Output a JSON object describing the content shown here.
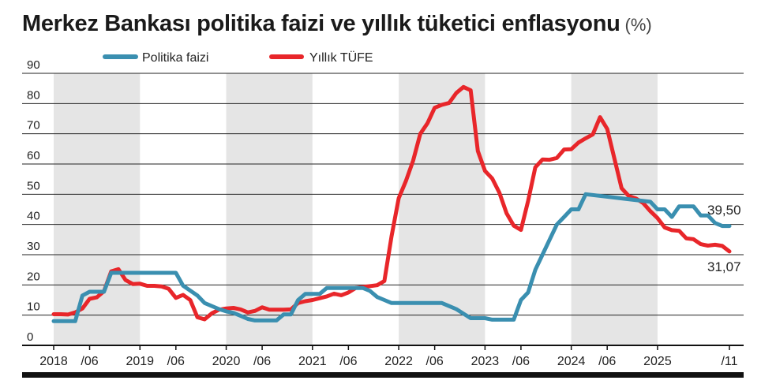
{
  "chart_data": {
    "type": "line",
    "title": "Merkez Bankası politika faizi ve yıllık tüketici enflasyonu",
    "unit": "(%)",
    "ylim": [
      0,
      90
    ],
    "yticks": [
      0,
      10,
      20,
      30,
      40,
      50,
      60,
      70,
      80,
      90
    ],
    "x_range": [
      "2018-01",
      "2025-11"
    ],
    "x_ticks": [
      {
        "label": "2018",
        "date": "2018-01"
      },
      {
        "label": "/06",
        "date": "2018-06"
      },
      {
        "label": "2019",
        "date": "2019-01"
      },
      {
        "label": "/06",
        "date": "2019-06"
      },
      {
        "label": "2020",
        "date": "2020-01"
      },
      {
        "label": "/06",
        "date": "2020-06"
      },
      {
        "label": "2021",
        "date": "2021-01"
      },
      {
        "label": "/06",
        "date": "2021-06"
      },
      {
        "label": "2022",
        "date": "2022-01"
      },
      {
        "label": "/06",
        "date": "2022-06"
      },
      {
        "label": "2023",
        "date": "2023-01"
      },
      {
        "label": "/06",
        "date": "2023-06"
      },
      {
        "label": "2024",
        "date": "2024-01"
      },
      {
        "label": "/06",
        "date": "2024-06"
      },
      {
        "label": "2025",
        "date": "2025-01"
      },
      {
        "label": "/11",
        "date": "2025-11"
      }
    ],
    "shaded_years": [
      2018,
      2020,
      2022,
      2024
    ],
    "grid": "horizontal",
    "legend_placement": "top",
    "series": [
      {
        "name": "Politika faizi",
        "color": "#3a8fb0",
        "end_label": "39,50",
        "points": [
          [
            "2018-01",
            8
          ],
          [
            "2018-04",
            8
          ],
          [
            "2018-05",
            16.5
          ],
          [
            "2018-06",
            17.75
          ],
          [
            "2018-07",
            17.75
          ],
          [
            "2018-08",
            17.75
          ],
          [
            "2018-09",
            24
          ],
          [
            "2019-06",
            24
          ],
          [
            "2019-07",
            19.75
          ],
          [
            "2019-09",
            16.5
          ],
          [
            "2019-10",
            14
          ],
          [
            "2019-12",
            12
          ],
          [
            "2020-01",
            11.25
          ],
          [
            "2020-02",
            10.75
          ],
          [
            "2020-03",
            9.75
          ],
          [
            "2020-04",
            8.75
          ],
          [
            "2020-05",
            8.25
          ],
          [
            "2020-08",
            8.25
          ],
          [
            "2020-09",
            10.25
          ],
          [
            "2020-10",
            10.25
          ],
          [
            "2020-11",
            15
          ],
          [
            "2020-12",
            17
          ],
          [
            "2021-02",
            17
          ],
          [
            "2021-03",
            19
          ],
          [
            "2021-08",
            19
          ],
          [
            "2021-09",
            18
          ],
          [
            "2021-10",
            16
          ],
          [
            "2021-11",
            15
          ],
          [
            "2021-12",
            14
          ],
          [
            "2022-07",
            14
          ],
          [
            "2022-08",
            13
          ],
          [
            "2022-09",
            12
          ],
          [
            "2022-10",
            10.5
          ],
          [
            "2022-11",
            9
          ],
          [
            "2023-01",
            9
          ],
          [
            "2023-02",
            8.5
          ],
          [
            "2023-05",
            8.5
          ],
          [
            "2023-06",
            15
          ],
          [
            "2023-07",
            17.5
          ],
          [
            "2023-08",
            25
          ],
          [
            "2023-09",
            30
          ],
          [
            "2023-10",
            35
          ],
          [
            "2023-11",
            40
          ],
          [
            "2023-12",
            42.5
          ],
          [
            "2024-01",
            45
          ],
          [
            "2024-02",
            45
          ],
          [
            "2024-03",
            50
          ],
          [
            "2024-12",
            47.5
          ],
          [
            "2025-01",
            45
          ],
          [
            "2025-02",
            45
          ],
          [
            "2025-03",
            42.5
          ],
          [
            "2025-04",
            46
          ],
          [
            "2025-06",
            46
          ],
          [
            "2025-07",
            43
          ],
          [
            "2025-08",
            43
          ],
          [
            "2025-09",
            40.5
          ],
          [
            "2025-10",
            39.5
          ],
          [
            "2025-11",
            39.5
          ]
        ]
      },
      {
        "name": "Yıllık TÜFE",
        "color": "#e8262a",
        "end_label": "31,07",
        "points": [
          [
            "2018-01",
            10.3
          ],
          [
            "2018-02",
            10.3
          ],
          [
            "2018-03",
            10.2
          ],
          [
            "2018-04",
            10.9
          ],
          [
            "2018-05",
            12.2
          ],
          [
            "2018-06",
            15.4
          ],
          [
            "2018-07",
            15.9
          ],
          [
            "2018-08",
            17.9
          ],
          [
            "2018-09",
            24.5
          ],
          [
            "2018-10",
            25.2
          ],
          [
            "2018-11",
            21.6
          ],
          [
            "2018-12",
            20.3
          ],
          [
            "2019-01",
            20.4
          ],
          [
            "2019-02",
            19.7
          ],
          [
            "2019-03",
            19.7
          ],
          [
            "2019-04",
            19.5
          ],
          [
            "2019-05",
            18.7
          ],
          [
            "2019-06",
            15.7
          ],
          [
            "2019-07",
            16.7
          ],
          [
            "2019-08",
            15
          ],
          [
            "2019-09",
            9.3
          ],
          [
            "2019-10",
            8.6
          ],
          [
            "2019-11",
            10.6
          ],
          [
            "2019-12",
            11.8
          ],
          [
            "2020-01",
            12.2
          ],
          [
            "2020-02",
            12.4
          ],
          [
            "2020-03",
            11.9
          ],
          [
            "2020-04",
            10.9
          ],
          [
            "2020-05",
            11.4
          ],
          [
            "2020-06",
            12.6
          ],
          [
            "2020-07",
            11.8
          ],
          [
            "2020-08",
            11.8
          ],
          [
            "2020-09",
            11.8
          ],
          [
            "2020-10",
            11.9
          ],
          [
            "2020-11",
            14
          ],
          [
            "2020-12",
            14.6
          ],
          [
            "2021-01",
            15
          ],
          [
            "2021-02",
            15.6
          ],
          [
            "2021-03",
            16.2
          ],
          [
            "2021-04",
            17.1
          ],
          [
            "2021-05",
            16.6
          ],
          [
            "2021-06",
            17.5
          ],
          [
            "2021-07",
            19
          ],
          [
            "2021-08",
            19.3
          ],
          [
            "2021-09",
            19.6
          ],
          [
            "2021-10",
            19.9
          ],
          [
            "2021-11",
            21.3
          ],
          [
            "2021-12",
            36.1
          ],
          [
            "2022-01",
            48.7
          ],
          [
            "2022-02",
            54.4
          ],
          [
            "2022-03",
            61.1
          ],
          [
            "2022-04",
            70
          ],
          [
            "2022-05",
            73.5
          ],
          [
            "2022-06",
            78.6
          ],
          [
            "2022-07",
            79.6
          ],
          [
            "2022-08",
            80.2
          ],
          [
            "2022-09",
            83.5
          ],
          [
            "2022-10",
            85.5
          ],
          [
            "2022-11",
            84.4
          ],
          [
            "2022-12",
            64.3
          ],
          [
            "2023-01",
            57.7
          ],
          [
            "2023-02",
            55.2
          ],
          [
            "2023-03",
            50.5
          ],
          [
            "2023-04",
            43.7
          ],
          [
            "2023-05",
            39.6
          ],
          [
            "2023-06",
            38.2
          ],
          [
            "2023-07",
            47.8
          ],
          [
            "2023-08",
            58.9
          ],
          [
            "2023-09",
            61.5
          ],
          [
            "2023-10",
            61.4
          ],
          [
            "2023-11",
            62
          ],
          [
            "2023-12",
            64.8
          ],
          [
            "2024-01",
            64.9
          ],
          [
            "2024-02",
            67.1
          ],
          [
            "2024-03",
            68.5
          ],
          [
            "2024-04",
            69.8
          ],
          [
            "2024-05",
            75.5
          ],
          [
            "2024-06",
            71.6
          ],
          [
            "2024-07",
            61.8
          ],
          [
            "2024-08",
            52
          ],
          [
            "2024-09",
            49.4
          ],
          [
            "2024-10",
            48.6
          ],
          [
            "2024-11",
            47.1
          ],
          [
            "2024-12",
            44.4
          ],
          [
            "2025-01",
            42.1
          ],
          [
            "2025-02",
            39
          ],
          [
            "2025-03",
            38.1
          ],
          [
            "2025-04",
            37.9
          ],
          [
            "2025-05",
            35.4
          ],
          [
            "2025-06",
            35.1
          ],
          [
            "2025-07",
            33.5
          ],
          [
            "2025-08",
            33
          ],
          [
            "2025-09",
            33.3
          ],
          [
            "2025-10",
            32.9
          ],
          [
            "2025-11",
            31.07
          ]
        ]
      }
    ]
  }
}
